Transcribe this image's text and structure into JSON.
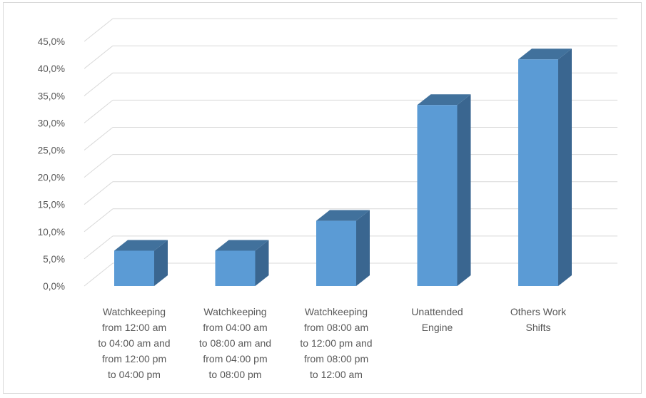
{
  "chart_data": {
    "type": "bar",
    "style": "3d-column",
    "categories": [
      [
        "Watchkeeping",
        "from 12:00 am",
        "to 04:00 am and",
        "from 12:00 pm",
        "to 04:00 pm"
      ],
      [
        "Watchkeeping",
        "from 04:00 am",
        "to 08:00 am and",
        "from 04:00 pm",
        "to 08:00 pm"
      ],
      [
        "Watchkeeping",
        "from 08:00 am",
        "to 12:00 pm and",
        "from 08:00 pm",
        "to 12:00 am"
      ],
      [
        "Unattended",
        "Engine"
      ],
      [
        "Others Work",
        "Shifts"
      ]
    ],
    "values": [
      6.5,
      6.5,
      12.0,
      33.3,
      41.7
    ],
    "ylim": [
      0,
      45
    ],
    "yticks": [
      "0,0%",
      "5,0%",
      "10,0%",
      "15,0%",
      "20,0%",
      "25,0%",
      "30,0%",
      "35,0%",
      "40,0%",
      "45,0%"
    ],
    "ytick_values": [
      0,
      5,
      10,
      15,
      20,
      25,
      30,
      35,
      40,
      45
    ],
    "grid": true,
    "title": "",
    "xlabel": "",
    "ylabel": "",
    "colors": {
      "bar_front": "#5b9bd5",
      "bar_side": "#3a6690",
      "bar_top": "#41719c",
      "grid": "#d9d9d9",
      "text": "#595959"
    }
  }
}
